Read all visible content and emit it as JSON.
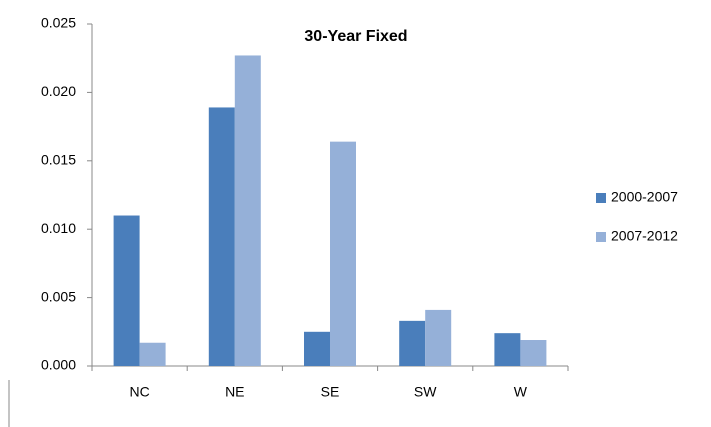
{
  "chart_data": {
    "type": "bar",
    "title": "30-Year Fixed",
    "categories": [
      "NC",
      "NE",
      "SE",
      "SW",
      "W"
    ],
    "series": [
      {
        "name": "2000-2007",
        "color": "#4a7ebb",
        "values": [
          0.011,
          0.0189,
          0.0025,
          0.0033,
          0.0024
        ]
      },
      {
        "name": "2007-2012",
        "color": "#95b0d8",
        "values": [
          0.0017,
          0.0227,
          0.0164,
          0.0041,
          0.0019
        ]
      }
    ],
    "ylim": [
      0,
      0.025
    ],
    "yticks": [
      {
        "value": 0,
        "label": "0.000"
      },
      0.005,
      {
        "value": 0.01,
        "label": "0.010"
      },
      0.015,
      {
        "value": 0.02,
        "label": "0.020"
      },
      0.025
    ],
    "legend": "right"
  }
}
